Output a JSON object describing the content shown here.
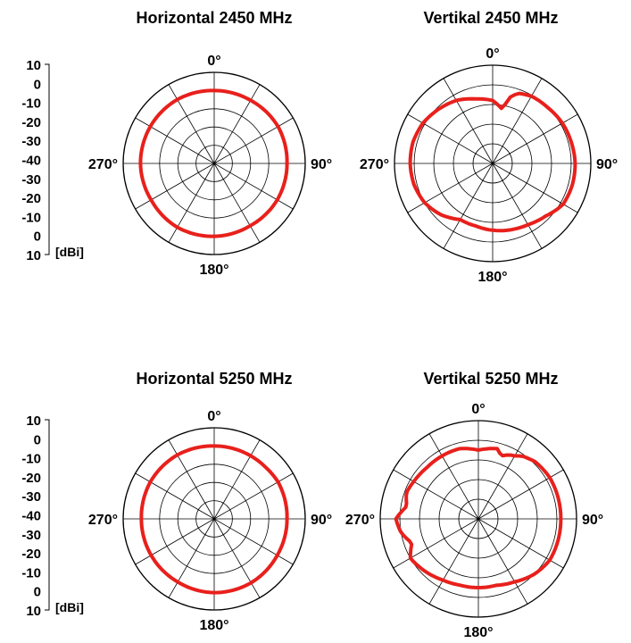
{
  "colors": {
    "pattern": "#e8201c",
    "grid": "#000000"
  },
  "scale": {
    "tick_labels": [
      "10",
      "0",
      "-10",
      "-20",
      "-30",
      "-40",
      "-30",
      "-20",
      "-10",
      "0",
      "10"
    ],
    "unit": "[dBi]"
  },
  "chart_data": [
    {
      "type": "polar",
      "title": "Horizontal 2450 MHz",
      "angle_labels": [
        "0°",
        "90°",
        "180°",
        "270°"
      ],
      "r_ticks_dbi": [
        10,
        0,
        -10,
        -20,
        -30,
        -40
      ],
      "r_range_dbi": [
        -40,
        10
      ],
      "series": [
        {
          "theta_deg": [
            0,
            30,
            60,
            90,
            120,
            150,
            180,
            210,
            240,
            270,
            300,
            330
          ],
          "gain_dbi": [
            0,
            0,
            0.5,
            0,
            0,
            -0.5,
            0,
            0.5,
            0,
            0.5,
            0.5,
            0.5
          ]
        }
      ]
    },
    {
      "type": "polar",
      "title": "Vertikal 2450 MHz",
      "angle_labels": [
        "0°",
        "90°",
        "180°",
        "270°"
      ],
      "r_ticks_dbi": [
        10,
        0,
        -10,
        -20,
        -30,
        -40
      ],
      "r_range_dbi": [
        -40,
        10
      ],
      "series": [
        {
          "theta_deg": [
            0,
            10,
            15,
            20,
            30,
            45,
            60,
            75,
            90,
            105,
            120,
            135,
            150,
            165,
            180,
            195,
            210,
            225,
            240,
            255,
            270,
            285,
            300,
            315,
            330,
            345
          ],
          "gain_dbi": [
            -8,
            -12,
            -5,
            -2,
            -0.5,
            0,
            1,
            1.5,
            2,
            2,
            1.5,
            -2,
            -4,
            -5,
            -6,
            -7,
            -7,
            -3,
            0,
            1.5,
            2,
            2,
            1,
            -1,
            -3,
            -6
          ]
        }
      ]
    },
    {
      "type": "polar",
      "title": "Horizontal 5250 MHz",
      "angle_labels": [
        "0°",
        "90°",
        "180°",
        "270°"
      ],
      "r_ticks_dbi": [
        10,
        0,
        -10,
        -20,
        -30,
        -40
      ],
      "r_range_dbi": [
        -40,
        10
      ],
      "series": [
        {
          "theta_deg": [
            0,
            30,
            45,
            60,
            90,
            120,
            150,
            180,
            210,
            240,
            270,
            300,
            330
          ],
          "gain_dbi": [
            0,
            0,
            0,
            0.5,
            0,
            0,
            0.5,
            0.5,
            0,
            0,
            0,
            0.5,
            0.5
          ]
        }
      ]
    },
    {
      "type": "polar",
      "title": "Vertikal 5250 MHz",
      "angle_labels": [
        "0°",
        "90°",
        "180°",
        "270°"
      ],
      "r_ticks_dbi": [
        10,
        0,
        -10,
        -20,
        -30,
        -40
      ],
      "r_range_dbi": [
        -40,
        10
      ],
      "series": [
        {
          "theta_deg": [
            0,
            15,
            20,
            25,
            30,
            35,
            40,
            45,
            60,
            90,
            120,
            135,
            150,
            165,
            180,
            195,
            210,
            225,
            240,
            250,
            260,
            270,
            280,
            290,
            300,
            315,
            330,
            345
          ],
          "gain_dbi": [
            -5,
            -3,
            -6,
            -4,
            -3,
            -1,
            0,
            1,
            2,
            2,
            2,
            0,
            -3,
            -5,
            -5,
            -5,
            -4,
            -2,
            0,
            -4,
            0,
            2,
            -3,
            -1,
            -2,
            -3,
            -3,
            -3
          ]
        }
      ]
    }
  ]
}
